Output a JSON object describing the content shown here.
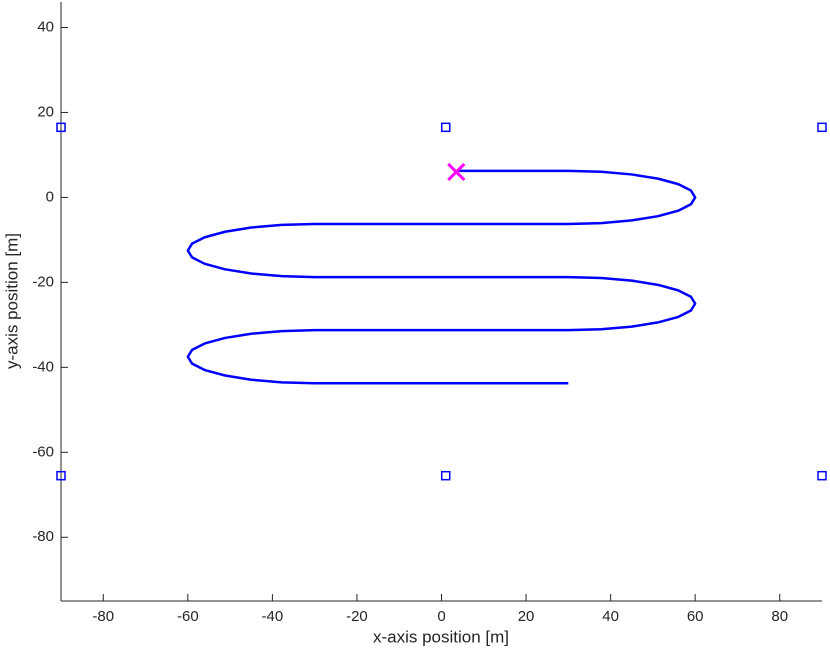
{
  "chart_data": {
    "type": "line",
    "xlabel": "x-axis position [m]",
    "ylabel": "y-axis position [m]",
    "xlim": [
      -90,
      90
    ],
    "ylim": [
      -95,
      46
    ],
    "xticks": [
      -80,
      -60,
      -40,
      -20,
      0,
      20,
      40,
      60,
      80
    ],
    "yticks": [
      -80,
      -60,
      -40,
      -20,
      0,
      20,
      40
    ],
    "series": [
      {
        "color": "#0000ff",
        "marker": "none",
        "x": [
          4,
          30,
          37.8,
          45,
          51.2,
          56,
          59,
          60,
          59,
          56,
          51.2,
          45,
          37.8,
          30,
          -30,
          -37.8,
          -45,
          -51.2,
          -56,
          -59,
          -60,
          -59,
          -56,
          -51.2,
          -45,
          -37.8,
          -30,
          30,
          37.8,
          45,
          51.2,
          56,
          59,
          60,
          59,
          56,
          51.2,
          45,
          37.8,
          30,
          -30,
          -37.8,
          -45,
          -51.2,
          -56,
          -59,
          -60,
          -59,
          -56,
          -51.2,
          -45,
          -37.8,
          -30,
          30
        ],
        "values": [
          6.25,
          6.25,
          6.04,
          5.41,
          4.42,
          3.13,
          1.62,
          0,
          -1.62,
          -3.13,
          -4.42,
          -5.41,
          -6.04,
          -6.25,
          -6.25,
          -6.46,
          -7.09,
          -8.08,
          -9.38,
          -10.88,
          -12.5,
          -14.12,
          -15.63,
          -16.92,
          -17.91,
          -18.54,
          -18.75,
          -18.75,
          -18.96,
          -19.59,
          -20.58,
          -21.88,
          -23.38,
          -25,
          -26.62,
          -28.13,
          -29.42,
          -30.41,
          -31.04,
          -31.25,
          -31.25,
          -31.46,
          -32.09,
          -33.08,
          -34.38,
          -35.88,
          -37.5,
          -39.12,
          -40.63,
          -41.92,
          -42.91,
          -43.54,
          -43.75,
          -43.75
        ]
      },
      {
        "color": "#0000ff",
        "marker": "square",
        "x": [
          -90,
          1,
          90,
          -90,
          1,
          90
        ],
        "values": [
          16.5,
          16.5,
          16.5,
          -65.5,
          -65.5,
          -65.5
        ]
      },
      {
        "color": "#ff00ff",
        "marker": "x",
        "x": [
          3.5
        ],
        "values": [
          6
        ]
      }
    ]
  }
}
